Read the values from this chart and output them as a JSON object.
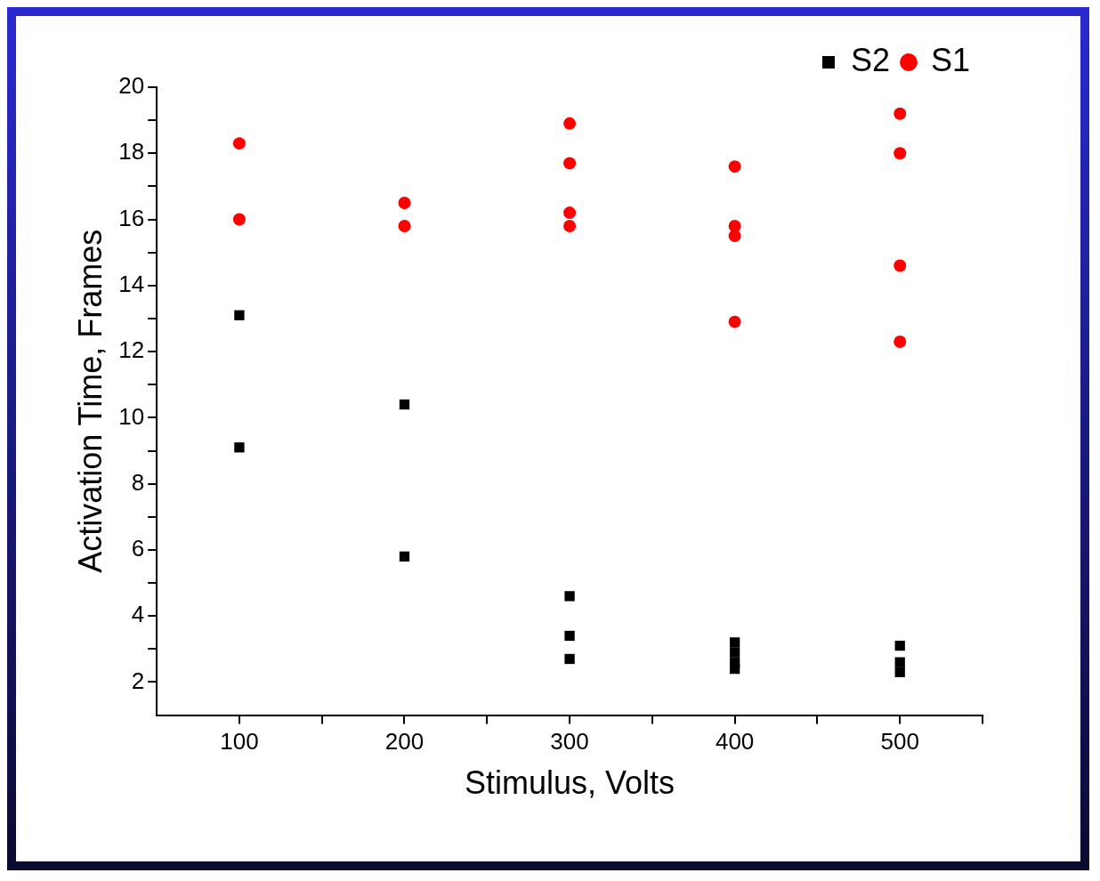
{
  "chart_data": {
    "type": "scatter",
    "xlabel": "Stimulus, Volts",
    "ylabel": "Activation Time, Frames",
    "xlim": [
      50,
      550
    ],
    "ylim": [
      1,
      20
    ],
    "xticks": [
      100,
      {
        "value": 150,
        "label": null
      },
      200,
      {
        "value": 250,
        "label": null
      },
      300,
      {
        "value": 350,
        "label": null
      },
      400,
      {
        "value": 450,
        "label": null
      },
      500,
      {
        "value": 550,
        "label": null
      }
    ],
    "yticks": [
      2,
      {
        "value": 3,
        "label": null
      },
      4,
      {
        "value": 5,
        "label": null
      },
      6,
      {
        "value": 7,
        "label": null
      },
      8,
      {
        "value": 9,
        "label": null
      },
      10,
      {
        "value": 11,
        "label": null
      },
      12,
      {
        "value": 13,
        "label": null
      },
      14,
      {
        "value": 15,
        "label": null
      },
      16,
      {
        "value": 17,
        "label": null
      },
      18,
      {
        "value": 19,
        "label": null
      },
      20
    ],
    "grid": false,
    "legend": "top right",
    "series": [
      {
        "name": "S2",
        "color": "#000000",
        "marker": "square",
        "x": [
          100,
          100,
          200,
          200,
          300,
          300,
          300,
          400,
          400,
          400,
          400,
          500,
          500,
          500
        ],
        "values": [
          13.1,
          9.1,
          10.4,
          5.8,
          4.6,
          3.4,
          2.7,
          3.2,
          2.9,
          2.6,
          2.4,
          3.1,
          2.6,
          2.3
        ]
      },
      {
        "name": "S1",
        "color": "#ff0000",
        "marker": "circle",
        "x": [
          100,
          100,
          200,
          200,
          300,
          300,
          300,
          300,
          400,
          400,
          400,
          400,
          500,
          500,
          500,
          500
        ],
        "values": [
          18.3,
          16.0,
          16.5,
          15.8,
          18.9,
          17.7,
          16.2,
          15.8,
          17.6,
          15.8,
          15.5,
          12.9,
          19.2,
          18.0,
          14.6,
          12.3
        ]
      }
    ]
  }
}
